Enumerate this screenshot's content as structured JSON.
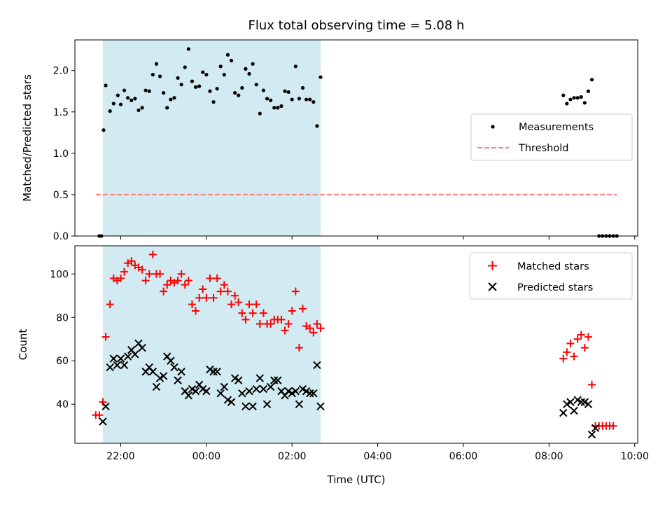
{
  "chart_data": {
    "type": "scatter",
    "title": "Flux total observing time = 5.08 h",
    "xlabel": "Time (UTC)",
    "x_unit": "hours (UTC)",
    "xlim": [
      20.93,
      10.07
    ],
    "x_ticks": [
      {
        "label": "22:00",
        "value": 22.0
      },
      {
        "label": "00:00",
        "value": 24.0
      },
      {
        "label": "02:00",
        "value": 26.0
      },
      {
        "label": "04:00",
        "value": 28.0
      },
      {
        "label": "06:00",
        "value": 30.0
      },
      {
        "label": "08:00",
        "value": 32.0
      },
      {
        "label": "10:00",
        "value": 34.0
      }
    ],
    "shaded_interval": {
      "start": "21:35",
      "end": "02:40",
      "color": "#add8e6"
    },
    "top_panel": {
      "ylabel": "Matched/Predicted stars",
      "ylim": [
        0,
        2.37
      ],
      "y_ticks": [
        "0.0",
        "0.5",
        "1.0",
        "1.5",
        "2.0"
      ],
      "legend": {
        "position": "center-right",
        "entries": [
          "Measurements",
          "Threshold"
        ]
      },
      "threshold": {
        "name": "Threshold",
        "value": 0.5,
        "x_start": "21:25",
        "x_end": "09:35",
        "color": "#ff7f7f",
        "style": "dashed"
      },
      "series": [
        {
          "name": "Measurements",
          "color": "#000000",
          "points": [
            [
              "21:30",
              0.0
            ],
            [
              "21:33",
              0.0
            ],
            [
              "21:36",
              1.28
            ],
            [
              "21:39",
              1.82
            ],
            [
              "21:45",
              1.51
            ],
            [
              "21:50",
              1.6
            ],
            [
              "21:56",
              1.7
            ],
            [
              "22:00",
              1.59
            ],
            [
              "22:05",
              1.76
            ],
            [
              "22:10",
              1.67
            ],
            [
              "22:15",
              1.64
            ],
            [
              "22:20",
              1.66
            ],
            [
              "22:25",
              1.52
            ],
            [
              "22:30",
              1.55
            ],
            [
              "22:35",
              1.76
            ],
            [
              "22:40",
              1.75
            ],
            [
              "22:45",
              1.95
            ],
            [
              "22:50",
              2.08
            ],
            [
              "22:55",
              1.93
            ],
            [
              "23:00",
              1.73
            ],
            [
              "23:05",
              1.55
            ],
            [
              "23:10",
              1.65
            ],
            [
              "23:15",
              1.67
            ],
            [
              "23:20",
              1.91
            ],
            [
              "23:25",
              1.83
            ],
            [
              "23:30",
              2.04
            ],
            [
              "23:35",
              2.26
            ],
            [
              "23:40",
              1.87
            ],
            [
              "23:45",
              1.8
            ],
            [
              "23:50",
              1.81
            ],
            [
              "23:55",
              1.98
            ],
            [
              "00:00",
              1.95
            ],
            [
              "00:05",
              1.75
            ],
            [
              "00:10",
              1.62
            ],
            [
              "00:15",
              1.78
            ],
            [
              "00:20",
              2.05
            ],
            [
              "00:25",
              1.95
            ],
            [
              "00:30",
              2.19
            ],
            [
              "00:35",
              2.12
            ],
            [
              "00:40",
              1.73
            ],
            [
              "00:45",
              1.7
            ],
            [
              "00:50",
              1.79
            ],
            [
              "00:55",
              2.02
            ],
            [
              "01:00",
              1.96
            ],
            [
              "01:05",
              2.08
            ],
            [
              "01:10",
              1.83
            ],
            [
              "01:15",
              1.48
            ],
            [
              "01:20",
              1.76
            ],
            [
              "01:25",
              1.66
            ],
            [
              "01:30",
              1.64
            ],
            [
              "01:35",
              1.55
            ],
            [
              "01:40",
              1.55
            ],
            [
              "01:45",
              1.57
            ],
            [
              "01:50",
              1.75
            ],
            [
              "01:55",
              1.74
            ],
            [
              "02:00",
              1.65
            ],
            [
              "02:05",
              2.05
            ],
            [
              "02:10",
              1.66
            ],
            [
              "02:15",
              1.79
            ],
            [
              "02:20",
              1.65
            ],
            [
              "02:25",
              1.65
            ],
            [
              "02:30",
              1.62
            ],
            [
              "02:35",
              1.33
            ],
            [
              "02:40",
              1.92
            ],
            [
              "08:20",
              1.7
            ],
            [
              "08:25",
              1.6
            ],
            [
              "08:30",
              1.65
            ],
            [
              "08:35",
              1.67
            ],
            [
              "08:40",
              1.67
            ],
            [
              "08:45",
              1.68
            ],
            [
              "08:50",
              1.61
            ],
            [
              "08:55",
              1.75
            ],
            [
              "09:00",
              1.89
            ],
            [
              "09:10",
              0.0
            ],
            [
              "09:15",
              0.0
            ],
            [
              "09:20",
              0.0
            ],
            [
              "09:25",
              0.0
            ],
            [
              "09:30",
              0.0
            ],
            [
              "09:35",
              0.0
            ]
          ]
        }
      ]
    },
    "bottom_panel": {
      "ylabel": "Count",
      "ylim": [
        22,
        113
      ],
      "y_ticks": [
        "40",
        "60",
        "80",
        "100"
      ],
      "legend": {
        "position": "top-right",
        "entries": [
          "Matched stars",
          "Predicted stars"
        ]
      },
      "series": [
        {
          "name": "Matched stars",
          "marker": "+",
          "color": "#ff0000",
          "points": [
            [
              "21:25",
              35
            ],
            [
              "21:30",
              35
            ],
            [
              "21:35",
              41
            ],
            [
              "21:39",
              71
            ],
            [
              "21:45",
              86
            ],
            [
              "21:50",
              98
            ],
            [
              "21:55",
              97
            ],
            [
              "22:00",
              98
            ],
            [
              "22:05",
              101
            ],
            [
              "22:10",
              105
            ],
            [
              "22:15",
              106
            ],
            [
              "22:20",
              104
            ],
            [
              "22:25",
              103
            ],
            [
              "22:30",
              102
            ],
            [
              "22:35",
              97
            ],
            [
              "22:40",
              100
            ],
            [
              "22:45",
              109
            ],
            [
              "22:50",
              100
            ],
            [
              "22:55",
              100
            ],
            [
              "23:00",
              92
            ],
            [
              "23:05",
              95
            ],
            [
              "23:10",
              97
            ],
            [
              "23:15",
              96
            ],
            [
              "23:20",
              97
            ],
            [
              "23:25",
              100
            ],
            [
              "23:30",
              95
            ],
            [
              "23:35",
              97
            ],
            [
              "23:40",
              86
            ],
            [
              "23:45",
              83
            ],
            [
              "23:50",
              89
            ],
            [
              "23:55",
              93
            ],
            [
              "00:00",
              89
            ],
            [
              "00:05",
              98
            ],
            [
              "00:10",
              89
            ],
            [
              "00:15",
              98
            ],
            [
              "00:20",
              92
            ],
            [
              "00:25",
              95
            ],
            [
              "00:30",
              92
            ],
            [
              "00:35",
              86
            ],
            [
              "00:40",
              90
            ],
            [
              "00:45",
              87
            ],
            [
              "00:50",
              82
            ],
            [
              "00:55",
              79
            ],
            [
              "01:00",
              86
            ],
            [
              "01:05",
              82
            ],
            [
              "01:10",
              86
            ],
            [
              "01:15",
              77
            ],
            [
              "01:20",
              82
            ],
            [
              "01:25",
              77
            ],
            [
              "01:30",
              77
            ],
            [
              "01:35",
              79
            ],
            [
              "01:40",
              79
            ],
            [
              "01:45",
              79
            ],
            [
              "01:50",
              74
            ],
            [
              "01:55",
              77
            ],
            [
              "02:00",
              83
            ],
            [
              "02:05",
              92
            ],
            [
              "02:10",
              66
            ],
            [
              "02:15",
              84
            ],
            [
              "02:20",
              76
            ],
            [
              "02:25",
              75
            ],
            [
              "02:30",
              73
            ],
            [
              "02:35",
              77
            ],
            [
              "02:40",
              75
            ],
            [
              "08:20",
              61
            ],
            [
              "08:25",
              64
            ],
            [
              "08:30",
              68
            ],
            [
              "08:35",
              62
            ],
            [
              "08:40",
              70
            ],
            [
              "08:45",
              72
            ],
            [
              "08:50",
              66
            ],
            [
              "08:55",
              71
            ],
            [
              "09:00",
              49
            ],
            [
              "09:05",
              30
            ],
            [
              "09:10",
              30
            ],
            [
              "09:15",
              30
            ],
            [
              "09:20",
              30
            ],
            [
              "09:25",
              30
            ],
            [
              "09:30",
              30
            ]
          ]
        },
        {
          "name": "Predicted stars",
          "marker": "x",
          "color": "#000000",
          "points": [
            [
              "21:35",
              32
            ],
            [
              "21:39",
              39
            ],
            [
              "21:45",
              57
            ],
            [
              "21:50",
              61
            ],
            [
              "21:55",
              58
            ],
            [
              "22:00",
              61
            ],
            [
              "22:05",
              58
            ],
            [
              "22:10",
              62
            ],
            [
              "22:15",
              65
            ],
            [
              "22:20",
              63
            ],
            [
              "22:25",
              68
            ],
            [
              "22:30",
              66
            ],
            [
              "22:35",
              55
            ],
            [
              "22:40",
              57
            ],
            [
              "22:45",
              55
            ],
            [
              "22:50",
              48
            ],
            [
              "22:55",
              52
            ],
            [
              "23:00",
              53
            ],
            [
              "23:05",
              62
            ],
            [
              "23:10",
              60
            ],
            [
              "23:15",
              57
            ],
            [
              "23:20",
              51
            ],
            [
              "23:25",
              55
            ],
            [
              "23:30",
              46
            ],
            [
              "23:35",
              44
            ],
            [
              "23:40",
              47
            ],
            [
              "23:45",
              46
            ],
            [
              "23:50",
              49
            ],
            [
              "23:55",
              47
            ],
            [
              "00:00",
              46
            ],
            [
              "00:05",
              56
            ],
            [
              "00:10",
              55
            ],
            [
              "00:15",
              55
            ],
            [
              "00:20",
              45
            ],
            [
              "00:25",
              48
            ],
            [
              "00:30",
              42
            ],
            [
              "00:35",
              41
            ],
            [
              "00:40",
              52
            ],
            [
              "00:45",
              51
            ],
            [
              "00:50",
              45
            ],
            [
              "00:55",
              39
            ],
            [
              "01:00",
              46
            ],
            [
              "01:05",
              39
            ],
            [
              "01:10",
              47
            ],
            [
              "01:15",
              52
            ],
            [
              "01:20",
              47
            ],
            [
              "01:25",
              40
            ],
            [
              "01:30",
              48
            ],
            [
              "01:35",
              51
            ],
            [
              "01:40",
              51
            ],
            [
              "01:45",
              46
            ],
            [
              "01:50",
              44
            ],
            [
              "01:55",
              46
            ],
            [
              "02:00",
              45
            ],
            [
              "02:05",
              46
            ],
            [
              "02:10",
              40
            ],
            [
              "02:15",
              47
            ],
            [
              "02:20",
              46
            ],
            [
              "02:25",
              45
            ],
            [
              "02:30",
              45
            ],
            [
              "02:35",
              58
            ],
            [
              "02:40",
              39
            ],
            [
              "08:20",
              36
            ],
            [
              "08:25",
              40
            ],
            [
              "08:30",
              41
            ],
            [
              "08:35",
              37
            ],
            [
              "08:40",
              42
            ],
            [
              "08:45",
              41
            ],
            [
              "08:50",
              41
            ],
            [
              "08:55",
              40
            ],
            [
              "09:00",
              26
            ],
            [
              "09:05",
              29
            ]
          ]
        }
      ]
    }
  }
}
